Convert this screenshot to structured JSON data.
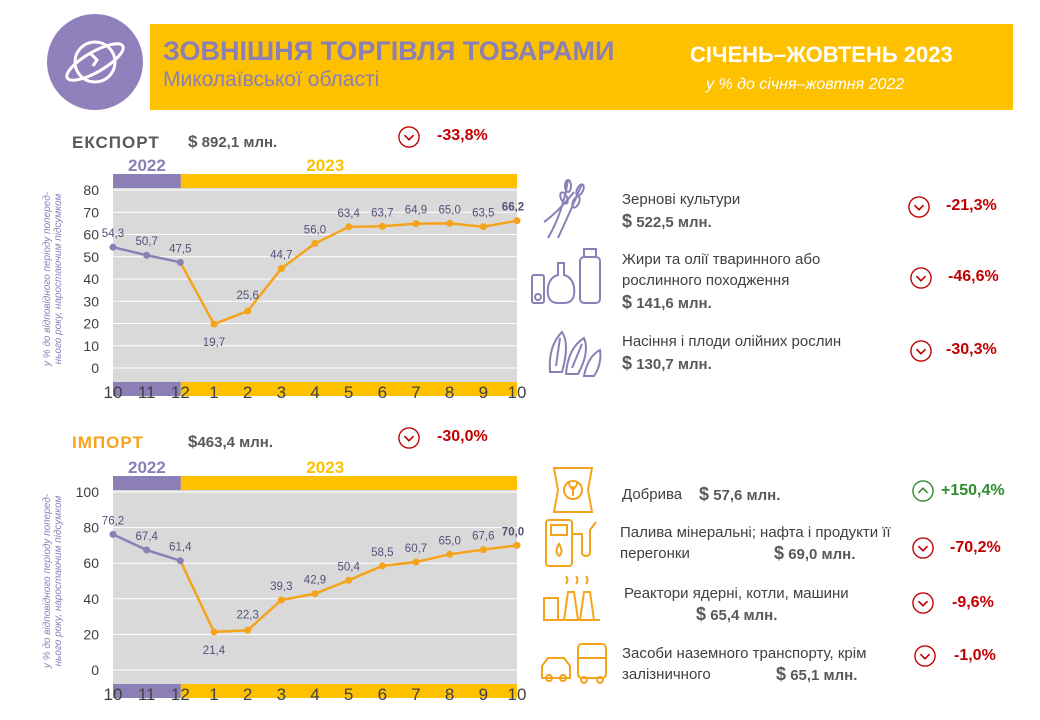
{
  "header": {
    "title": "ЗОВНІШНЯ ТОРГІВЛЯ ТОВАРАМИ",
    "subtitle": "Миколаївської області",
    "period": "СІЧЕНЬ–ЖОВТЕНЬ 2023",
    "period_sub": "у % до січня–жовтня 2022",
    "logo_icon": "globe-icon"
  },
  "colors": {
    "purple": "#8b7fb6",
    "orange": "#f5a31a",
    "yellow": "#fdc100",
    "red": "#c00000",
    "green": "#2e8b2e",
    "grey": "#d9d9d9"
  },
  "export": {
    "label": "ЕКСПОРТ",
    "currency": "$",
    "total": "892,1 млн.",
    "change": "-33,8%",
    "direction": "down",
    "categories": [
      {
        "name": "Зернові культури",
        "currency": "$",
        "value": "522,5 млн.",
        "change": "-21,3%",
        "direction": "down",
        "icon": "wheat-icon"
      },
      {
        "name": "Жири та олії тваринного або рослинного походження",
        "currency": "$",
        "value": "141,6 млн.",
        "change": "-46,6%",
        "direction": "down",
        "icon": "oil-bottle-icon"
      },
      {
        "name": "Насіння і плоди олійних рослин",
        "currency": "$",
        "value": "130,7 млн.",
        "change": "-30,3%",
        "direction": "down",
        "icon": "sunflower-seeds-icon"
      }
    ]
  },
  "import": {
    "label": "ІМПОРТ",
    "currency": "$",
    "total": "463,4 млн.",
    "change": "-30,0%",
    "direction": "down",
    "categories": [
      {
        "name": "Добрива",
        "currency": "$",
        "value": "57,6 млн.",
        "change": "+150,4%",
        "direction": "up",
        "icon": "fertilizer-bag-icon"
      },
      {
        "name": "Палива мінеральні; нафта і продукти її перегонки",
        "currency": "$",
        "value": "69,0 млн.",
        "change": "-70,2%",
        "direction": "down",
        "icon": "fuel-pump-icon"
      },
      {
        "name": "Реактори ядерні, котли, машини",
        "currency": "$",
        "value": "65,4 млн.",
        "change": "-9,6%",
        "direction": "down",
        "icon": "factory-icon"
      },
      {
        "name": "Засоби наземного транспорту, крім залізничного",
        "currency": "$",
        "value": "65,1 млн.",
        "change": "-1,0%",
        "direction": "down",
        "icon": "vehicles-icon"
      }
    ]
  },
  "chart_data": [
    {
      "type": "line",
      "ylabel": "у % до відповідного періоду поперед-нього року, наростаючим підсумком",
      "ylim": [
        0,
        80
      ],
      "yticks": [
        "0",
        "10",
        "20",
        "30",
        "40",
        "50",
        "60",
        "70",
        "80"
      ],
      "x": [
        "10",
        "11",
        "12",
        "1",
        "2",
        "3",
        "4",
        "5",
        "6",
        "7",
        "8",
        "9",
        "10"
      ],
      "year_labels": [
        "2022",
        "2023"
      ],
      "values": [
        54.3,
        50.7,
        47.5,
        19.7,
        25.6,
        44.7,
        56.0,
        63.4,
        63.7,
        64.9,
        65.0,
        63.5,
        66.2
      ],
      "labels": [
        "54,3",
        "50,7",
        "47,5",
        "19,7",
        "25,6",
        "44,7",
        "56,0",
        "63,4",
        "63,7",
        "64,9",
        "65,0",
        "63,5",
        "66,2"
      ],
      "grid": true
    },
    {
      "type": "line",
      "ylabel": "у % до відповідного періоду поперед-нього року, наростаючим підсумком",
      "ylim": [
        0,
        100
      ],
      "yticks": [
        "0",
        "20",
        "40",
        "60",
        "80",
        "100"
      ],
      "x": [
        "10",
        "11",
        "12",
        "1",
        "2",
        "3",
        "4",
        "5",
        "6",
        "7",
        "8",
        "9",
        "10"
      ],
      "year_labels": [
        "2022",
        "2023"
      ],
      "values": [
        76.2,
        67.4,
        61.4,
        21.4,
        22.3,
        39.3,
        42.9,
        50.4,
        58.5,
        60.7,
        65.0,
        67.6,
        70.0
      ],
      "labels": [
        "76,2",
        "67,4",
        "61,4",
        "21,4",
        "22,3",
        "39,3",
        "42,9",
        "50,4",
        "58,5",
        "60,7",
        "65,0",
        "67,6",
        "70,0"
      ],
      "grid": true
    }
  ]
}
